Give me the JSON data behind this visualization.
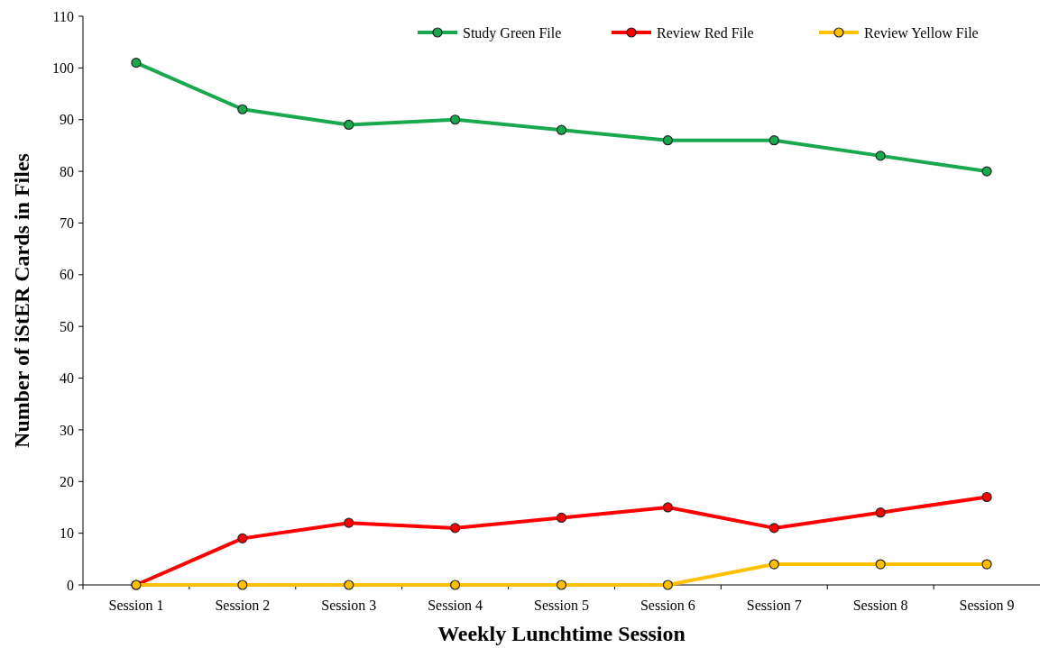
{
  "chart_data": {
    "type": "line",
    "xlabel": "Weekly Lunchtime Session",
    "ylabel": "Number of iStER Cards in Files",
    "categories": [
      "Session 1",
      "Session 2",
      "Session 3",
      "Session 4",
      "Session 5",
      "Session 6",
      "Session 7",
      "Session 8",
      "Session 9"
    ],
    "series": [
      {
        "name": "Study Green File",
        "color": "#1aa84f",
        "values": [
          101,
          92,
          89,
          90,
          88,
          86,
          86,
          83,
          80
        ]
      },
      {
        "name": "Review Red File",
        "color": "#ff0000",
        "values": [
          0,
          9,
          12,
          11,
          13,
          15,
          11,
          14,
          17
        ]
      },
      {
        "name": "Review Yellow File",
        "color": "#ffc000",
        "values": [
          0,
          0,
          0,
          0,
          0,
          0,
          4,
          4,
          4
        ]
      }
    ],
    "ylim": [
      0,
      110
    ],
    "yticks": [
      0,
      10,
      20,
      30,
      40,
      50,
      60,
      70,
      80,
      90,
      100,
      110
    ],
    "grid": false,
    "legend": "top right",
    "marker": "circle",
    "line_style": "solid"
  }
}
